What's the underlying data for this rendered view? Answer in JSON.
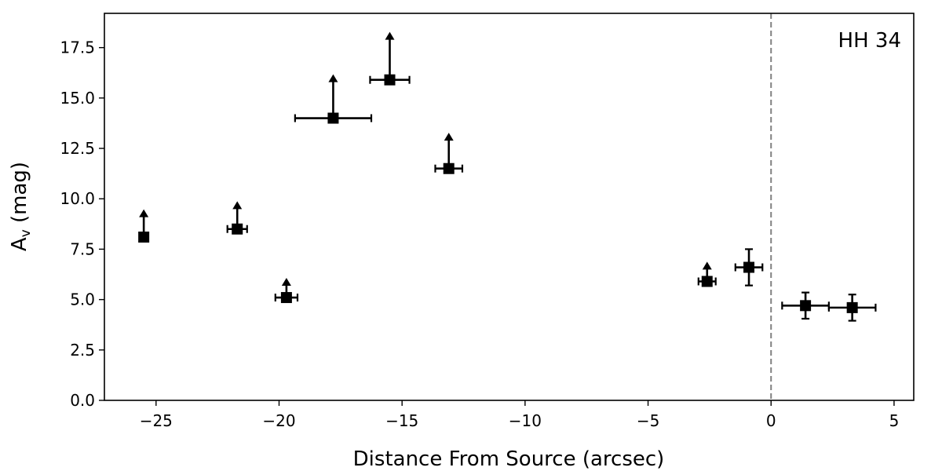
{
  "chart_data": {
    "type": "scatter",
    "title": "",
    "xlabel": "Distance From Source (arcsec)",
    "ylabel_main": "A",
    "ylabel_sub": "v",
    "ylabel_unit": " (mag)",
    "annotation": "HH 34",
    "xlim": [
      -27.1,
      5.8
    ],
    "ylim": [
      0,
      19.2
    ],
    "xticks": [
      -25,
      -20,
      -15,
      -10,
      -5,
      0,
      5
    ],
    "xtick_labels": [
      "−25",
      "−20",
      "−15",
      "−10",
      "−5",
      "0",
      "5"
    ],
    "yticks": [
      0,
      2.5,
      5,
      7.5,
      10,
      12.5,
      15,
      17.5
    ],
    "ytick_labels": [
      "0.0",
      "2.5",
      "5.0",
      "7.5",
      "10.0",
      "12.5",
      "15.0",
      "17.5"
    ],
    "grid": false,
    "reference_line": {
      "x": 0,
      "style": "dashed",
      "color": "#808080"
    },
    "marker_color": "#000000",
    "points": [
      {
        "x": -25.5,
        "y": 8.1,
        "xerr": 0,
        "yerr": 0,
        "lower_limit": true,
        "arrow_to": 9.4
      },
      {
        "x": -21.7,
        "y": 8.5,
        "xerr": 0.4,
        "yerr": 0,
        "lower_limit": true,
        "arrow_to": 9.8
      },
      {
        "x": -19.7,
        "y": 5.1,
        "xerr": 0.45,
        "yerr": 0,
        "lower_limit": true,
        "arrow_to": 6.0
      },
      {
        "x": -17.8,
        "y": 14.0,
        "xerr": 1.55,
        "yerr": 0,
        "lower_limit": true,
        "arrow_to": 16.1
      },
      {
        "x": -15.5,
        "y": 15.9,
        "xerr": 0.8,
        "yerr": 0,
        "lower_limit": true,
        "arrow_to": 18.2
      },
      {
        "x": -13.1,
        "y": 11.5,
        "xerr": 0.55,
        "yerr": 0,
        "lower_limit": true,
        "arrow_to": 13.2
      },
      {
        "x": -2.6,
        "y": 5.9,
        "xerr": 0.35,
        "yerr": 0,
        "lower_limit": true,
        "arrow_to": 6.8
      },
      {
        "x": -0.9,
        "y": 6.6,
        "xerr": 0.55,
        "yerr": 0.9,
        "lower_limit": false
      },
      {
        "x": 1.4,
        "y": 4.7,
        "xerr": 0.95,
        "yerr": 0.65,
        "lower_limit": false
      },
      {
        "x": 3.3,
        "y": 4.6,
        "xerr": 0.95,
        "yerr": 0.65,
        "lower_limit": false
      }
    ]
  }
}
